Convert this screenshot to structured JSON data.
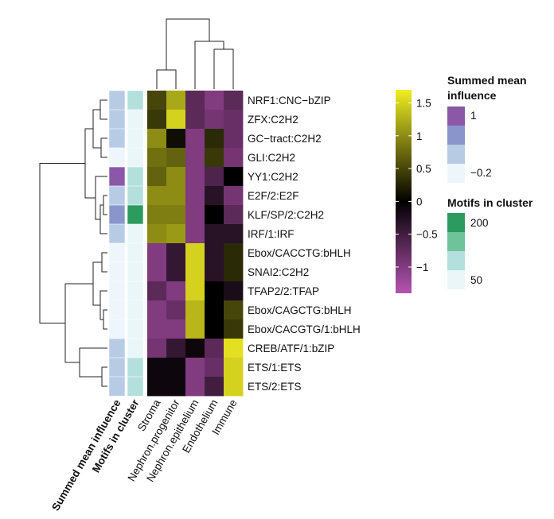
{
  "chart_data": {
    "type": "heatmap",
    "rows": [
      "NRF1:CNC−bZIP",
      "ZFX:C2H2",
      "GC−tract:C2H2",
      "GLI:C2H2",
      "YY1:C2H2",
      "E2F/2:E2F",
      "KLF/SP/2:C2H2",
      "IRF/1:IRF",
      "Ebox/CACCTG:bHLH",
      "SNAI2:C2H2",
      "TFAP2/2:TFAP",
      "Ebox/CAGCTG:bHLH",
      "Ebox/CACGTG/1:bHLH",
      "CREB/ATF/1:bZIP",
      "ETS/1:ETS",
      "ETS/2:ETS"
    ],
    "columns": [
      "Stroma",
      "Nephron.progenitor",
      "Nephron.epithelium",
      "Endothelium",
      "Immune"
    ],
    "values": [
      [
        0.5,
        1.2,
        -0.7,
        -1.0,
        -0.7
      ],
      [
        0.4,
        1.5,
        -0.7,
        -0.9,
        -0.8
      ],
      [
        1.0,
        0.1,
        -1.0,
        0.3,
        -0.8
      ],
      [
        0.8,
        0.7,
        -1.0,
        0.4,
        -0.9
      ],
      [
        0.7,
        1.0,
        -1.0,
        -0.6,
        0.0
      ],
      [
        1.0,
        1.0,
        -1.0,
        -0.3,
        -0.9
      ],
      [
        0.9,
        0.9,
        -1.0,
        0.0,
        -0.7
      ],
      [
        1.0,
        1.1,
        -1.0,
        -0.3,
        -0.3
      ],
      [
        -1.0,
        -0.4,
        1.5,
        -0.3,
        0.3
      ],
      [
        -1.0,
        -0.4,
        1.5,
        -0.3,
        0.3
      ],
      [
        -0.7,
        -1.0,
        1.5,
        0.0,
        -0.2
      ],
      [
        -1.0,
        -0.8,
        1.3,
        0.0,
        0.5
      ],
      [
        -1.0,
        -1.0,
        1.3,
        0.0,
        0.4
      ],
      [
        -0.9,
        -0.4,
        -0.1,
        -0.7,
        1.6
      ],
      [
        -0.1,
        -0.1,
        -1.0,
        -0.8,
        1.5
      ],
      [
        -0.1,
        -0.1,
        -1.0,
        -0.5,
        1.5
      ]
    ],
    "annotation_columns": [
      "Summed mean influence",
      "Motifs in cluster"
    ],
    "summed_mean_influence": [
      0.3,
      0.2,
      0.1,
      0.0,
      1.0,
      0.1,
      0.6,
      0.1,
      -0.2,
      0.0,
      0.0,
      -0.1,
      -0.1,
      0.1,
      0.4,
      0.4
    ],
    "motifs_in_cluster": [
      100,
      55,
      45,
      40,
      90,
      80,
      210,
      55,
      45,
      55,
      60,
      55,
      55,
      60,
      110,
      110
    ],
    "color_scale": {
      "range": [
        -1.4,
        1.7
      ],
      "ticks": [
        "1.5",
        "1",
        "0.5",
        "0",
        "−0.5",
        "−1"
      ],
      "tick_values": [
        1.5,
        1.0,
        0.5,
        0.0,
        -0.5,
        -1.0
      ]
    },
    "influence_legend": {
      "title_line1": "Summed mean",
      "title_line2": "influence",
      "ticks": [
        "1",
        "−0.2"
      ]
    },
    "motifs_legend": {
      "title": "Motifs in cluster",
      "ticks": [
        "200",
        "50"
      ]
    },
    "colors": {
      "heat_low": "#b553b2",
      "heat_mid": "#000000",
      "heat_high": "#f0ee22",
      "influence": [
        "#8b58a8",
        "#8a96cb",
        "#b7cbe5",
        "#eef5fb"
      ],
      "motifs": [
        "#2c9b5f",
        "#6fc39b",
        "#b3dfdc",
        "#eaf6f7"
      ]
    }
  }
}
